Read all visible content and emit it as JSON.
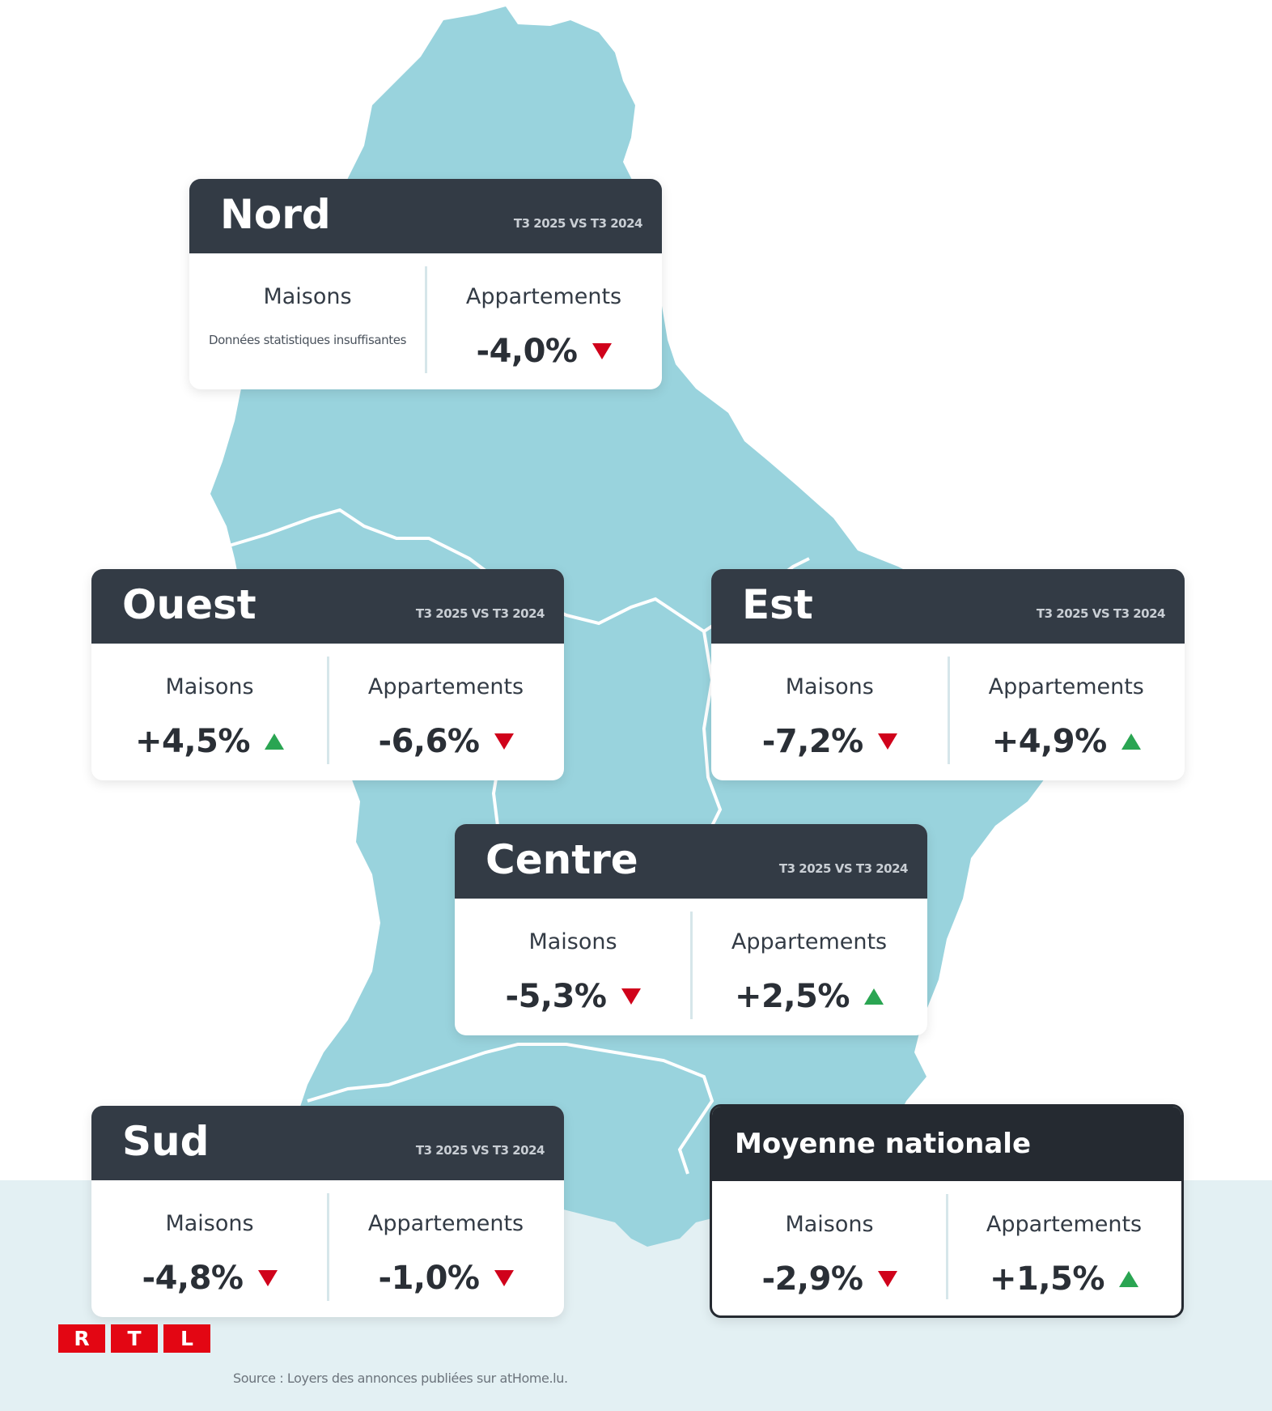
{
  "colors": {
    "map_fill": "#99d3dd",
    "map_border": "#ffffff",
    "card_header": "#333b45",
    "card_header_national": "#252a31",
    "arrow_down": "#d0021b",
    "arrow_up": "#2aa552",
    "logo_red": "#e30613",
    "band": "#e3f0f3"
  },
  "cards": {
    "nord": {
      "region": "Nord",
      "period": "T3 2025 VS T3 2024",
      "maisons_label": "Maisons",
      "maisons_note": "Données statistiques insuffisantes",
      "appartements_label": "Appartements",
      "appartements_value": "-4,0%",
      "appartements_trend": "down"
    },
    "ouest": {
      "region": "Ouest",
      "period": "T3 2025 VS T3 2024",
      "maisons_label": "Maisons",
      "maisons_value": "+4,5%",
      "maisons_trend": "up",
      "appartements_label": "Appartements",
      "appartements_value": "-6,6%",
      "appartements_trend": "down"
    },
    "est": {
      "region": "Est",
      "period": "T3 2025 VS T3 2024",
      "maisons_label": "Maisons",
      "maisons_value": "-7,2%",
      "maisons_trend": "down",
      "appartements_label": "Appartements",
      "appartements_value": "+4,9%",
      "appartements_trend": "up"
    },
    "centre": {
      "region": "Centre",
      "period": "T3 2025 VS T3 2024",
      "maisons_label": "Maisons",
      "maisons_value": "-5,3%",
      "maisons_trend": "down",
      "appartements_label": "Appartements",
      "appartements_value": "+2,5%",
      "appartements_trend": "up"
    },
    "sud": {
      "region": "Sud",
      "period": "T3 2025 VS T3 2024",
      "maisons_label": "Maisons",
      "maisons_value": "-4,8%",
      "maisons_trend": "down",
      "appartements_label": "Appartements",
      "appartements_value": "-1,0%",
      "appartements_trend": "down"
    },
    "national": {
      "region": "Moyenne nationale",
      "maisons_label": "Maisons",
      "maisons_value": "-2,9%",
      "maisons_trend": "down",
      "appartements_label": "Appartements",
      "appartements_value": "+1,5%",
      "appartements_trend": "up"
    }
  },
  "logo": {
    "letters": [
      "R",
      "T",
      "L"
    ]
  },
  "source": "Source : Loyers des annonces publiées sur atHome.lu."
}
